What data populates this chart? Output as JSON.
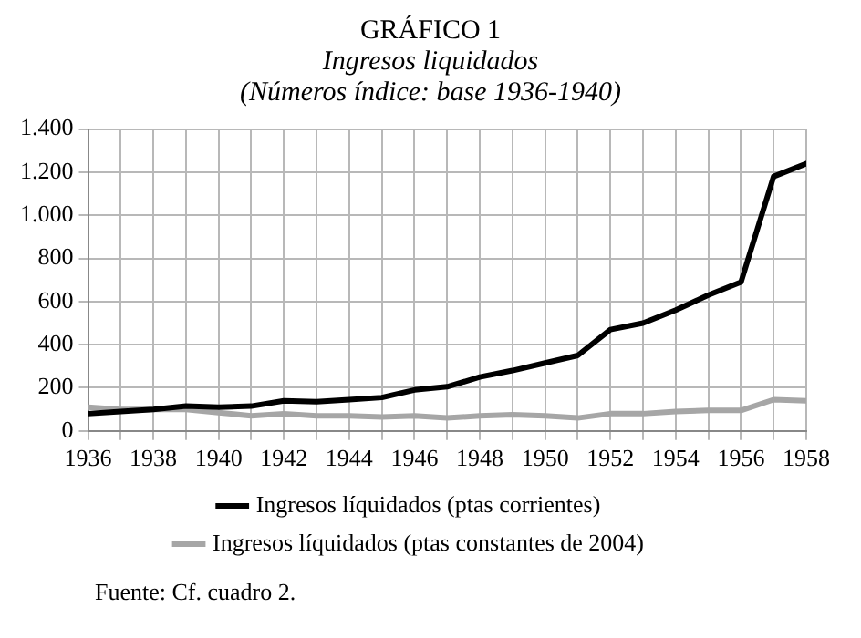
{
  "chart_data": {
    "type": "line",
    "title": "GRÁFICO 1",
    "subtitle": "Ingresos liquidados\n(Números índice: base 1936-1940)",
    "x": [
      1936,
      1937,
      1938,
      1939,
      1940,
      1941,
      1942,
      1943,
      1944,
      1945,
      1946,
      1947,
      1948,
      1949,
      1950,
      1951,
      1952,
      1953,
      1954,
      1955,
      1956,
      1957,
      1958
    ],
    "series": [
      {
        "name": "Ingresos líquidados (ptas corrientes)",
        "color": "#000000",
        "values": [
          80,
          90,
          100,
          115,
          110,
          115,
          140,
          135,
          145,
          155,
          190,
          205,
          250,
          280,
          315,
          350,
          470,
          500,
          560,
          630,
          690,
          1180,
          1240
        ]
      },
      {
        "name": "Ingresos líquidados (ptas constantes de 2004)",
        "color": "#a6a6a6",
        "values": [
          110,
          100,
          100,
          100,
          85,
          70,
          80,
          70,
          70,
          65,
          70,
          60,
          70,
          75,
          70,
          60,
          80,
          80,
          90,
          95,
          95,
          145,
          140
        ]
      }
    ],
    "xlim": [
      1936,
      1958
    ],
    "xticks": [
      1936,
      {
        "value": 1937,
        "label": null
      },
      1938,
      {
        "value": 1939,
        "label": null
      },
      1940,
      {
        "value": 1941,
        "label": null
      },
      1942,
      {
        "value": 1943,
        "label": null
      },
      1944,
      {
        "value": 1945,
        "label": null
      },
      1946,
      {
        "value": 1947,
        "label": null
      },
      1948,
      {
        "value": 1949,
        "label": null
      },
      1950,
      {
        "value": 1951,
        "label": null
      },
      1952,
      {
        "value": 1953,
        "label": null
      },
      1954,
      {
        "value": 1955,
        "label": null
      },
      1956,
      {
        "value": 1957,
        "label": null
      },
      1958
    ],
    "ylim": [
      0,
      1400
    ],
    "yticks": [
      0,
      200,
      400,
      600,
      800,
      {
        "value": 1000,
        "label": "1.000"
      },
      {
        "value": 1200,
        "label": "1.200"
      },
      {
        "value": 1400,
        "label": "1.400"
      }
    ],
    "grid": true,
    "legend": "bottom",
    "marker": "none",
    "line_style": "solid",
    "annotations": [
      "Fuente: Cf. cuadro 2."
    ]
  }
}
